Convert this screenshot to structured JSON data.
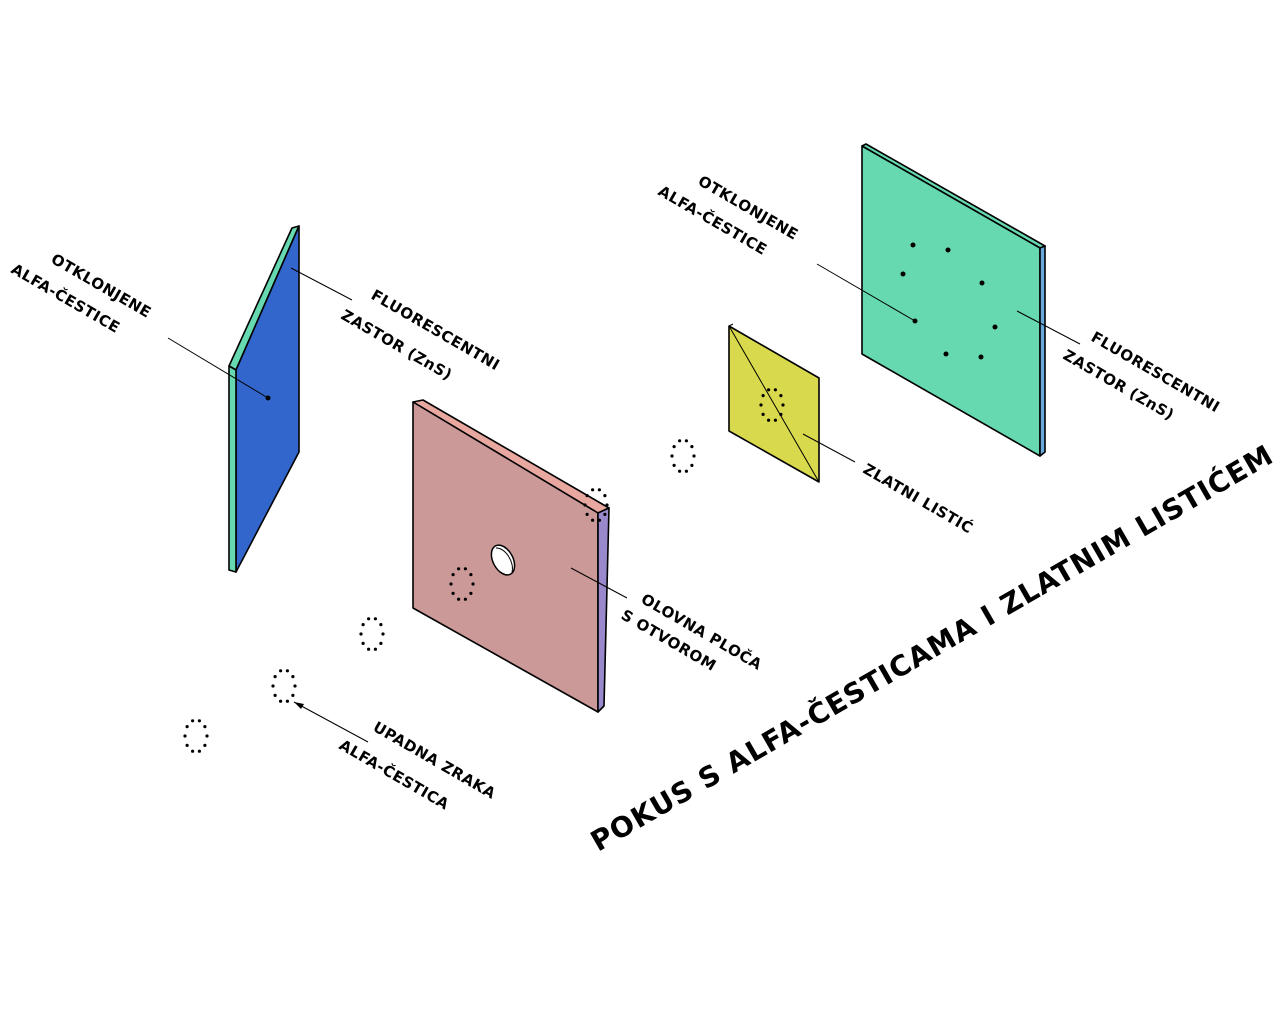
{
  "title": "POKUS S ALFA-ČESTICAMA I ZLATNIM LISTIĆEM",
  "labels": {
    "left_deflected_1": "OTKLONJENE",
    "left_deflected_2": "ALFA-ČESTICE",
    "left_screen_1": "FLUORESCENTNI",
    "left_screen_2": "ZASTOR (ZnS)",
    "lead_plate_1": "OLOVNA PLOČA",
    "lead_plate_2": "S OTVOROM",
    "incident_1": "UPADNA ZRAKA",
    "incident_2": "ALFA-ČESTICA",
    "right_deflected_1": "OTKLONJENE",
    "right_deflected_2": "ALFA-ČESTICE",
    "gold_foil": "ZLATNI LISTIĆ",
    "right_screen_1": "FLUORESCENTNI",
    "right_screen_2": "ZASTOR (ZnS)"
  },
  "colors": {
    "left_screen_face": "#3366cc",
    "left_screen_edge": "#66d9b0",
    "lead_plate_face": "#cc9999",
    "lead_plate_top": "#e8a8a0",
    "lead_plate_side": "#9988cc",
    "gold_foil": "#d9d94d",
    "right_screen_face": "#66d9b0",
    "right_screen_side": "#66aadd"
  }
}
